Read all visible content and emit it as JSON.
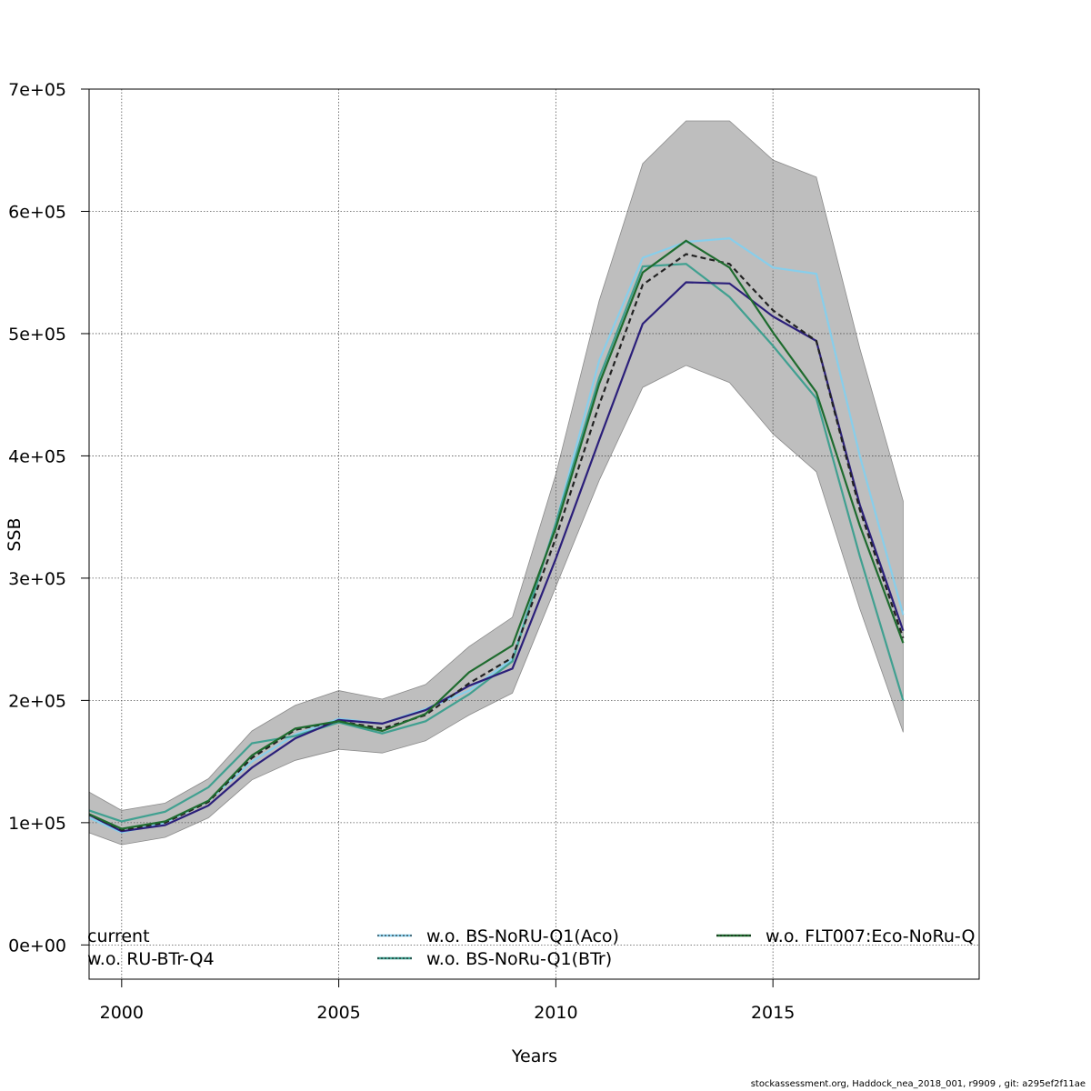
{
  "footer": "stockassessment.org, Haddock_nea_2018_001, r9909 , git: a295ef2f11ae",
  "chart_data": {
    "type": "line",
    "title": "",
    "xlabel": "Years",
    "ylabel": "SSB",
    "xlim": [
      1999.25,
      2019.75
    ],
    "ylim": [
      -28000,
      700000
    ],
    "xticks": [
      2000,
      2005,
      2010,
      2015
    ],
    "xtick_labels": [
      "2000",
      "2005",
      "2010",
      "2015"
    ],
    "yticks": [
      0,
      100000,
      200000,
      300000,
      400000,
      500000,
      600000,
      700000
    ],
    "ytick_labels": [
      "0e+00",
      "1e+05",
      "2e+05",
      "3e+05",
      "4e+05",
      "5e+05",
      "6e+05",
      "7e+05"
    ],
    "grid": true,
    "x": [
      1999,
      2000,
      2001,
      2002,
      2003,
      2004,
      2005,
      2006,
      2007,
      2008,
      2009,
      2010,
      2011,
      2012,
      2013,
      2014,
      2015,
      2016,
      2017,
      2018
    ],
    "band": {
      "color": "#bebebe",
      "lower": [
        95000,
        82000,
        88000,
        104000,
        135000,
        151000,
        160000,
        157000,
        167000,
        188000,
        206000,
        293000,
        380000,
        456000,
        474000,
        460000,
        418000,
        387000,
        275000,
        174000
      ],
      "upper": [
        130000,
        110000,
        116000,
        136000,
        175000,
        196000,
        208000,
        201000,
        213000,
        244000,
        268000,
        385000,
        527000,
        639000,
        674000,
        674000,
        642000,
        628000,
        488000,
        363000
      ]
    },
    "series": [
      {
        "name": "w.o. BS-NoRU-Q1(Aco)",
        "color": "#87ceeb",
        "dash": "",
        "values": [
          108000,
          92000,
          100000,
          118000,
          150000,
          172000,
          185000,
          181000,
          193000,
          208000,
          234000,
          345000,
          478000,
          562000,
          575000,
          578000,
          554000,
          549000,
          400000,
          270000
        ]
      },
      {
        "name": "w.o. BS-NoRu-Q1(BTr)",
        "color": "#40a090",
        "dash": "",
        "values": [
          113000,
          101000,
          109000,
          129000,
          165000,
          171000,
          182000,
          173000,
          183000,
          205000,
          232000,
          345000,
          464000,
          555000,
          557000,
          530000,
          490000,
          447000,
          318000,
          200000
        ]
      },
      {
        "name": "w.o. RU-BTr-Q4",
        "color": "#2b1f7a",
        "dash": "",
        "values": [
          111000,
          93000,
          98000,
          114000,
          145000,
          169000,
          184000,
          181000,
          192000,
          212000,
          226000,
          316000,
          413000,
          508000,
          542000,
          541000,
          514000,
          494000,
          360000,
          257000
        ]
      },
      {
        "name": "current",
        "color": "#222222",
        "dash": "6,4",
        "values": [
          111000,
          94000,
          100000,
          117000,
          153000,
          176000,
          183000,
          177000,
          188000,
          214000,
          235000,
          333000,
          442000,
          540000,
          565000,
          557000,
          519000,
          494000,
          356000,
          251000
        ]
      },
      {
        "name": "w.o. FLT007:Eco-NoRu-Q",
        "color": "#1e6b2e",
        "dash": "",
        "values": [
          111000,
          95000,
          101000,
          118000,
          155000,
          177000,
          183000,
          175000,
          189000,
          223000,
          245000,
          341000,
          459000,
          550000,
          576000,
          554000,
          501000,
          452000,
          343000,
          247000
        ]
      }
    ],
    "legend": {
      "position": "bottom",
      "items": [
        "current",
        "w.o. RU-BTr-Q4",
        "w.o. BS-NoRU-Q1(Aco)",
        "w.o. BS-NoRu-Q1(BTr)",
        "w.o. FLT007:Eco-NoRu-Q"
      ]
    }
  }
}
